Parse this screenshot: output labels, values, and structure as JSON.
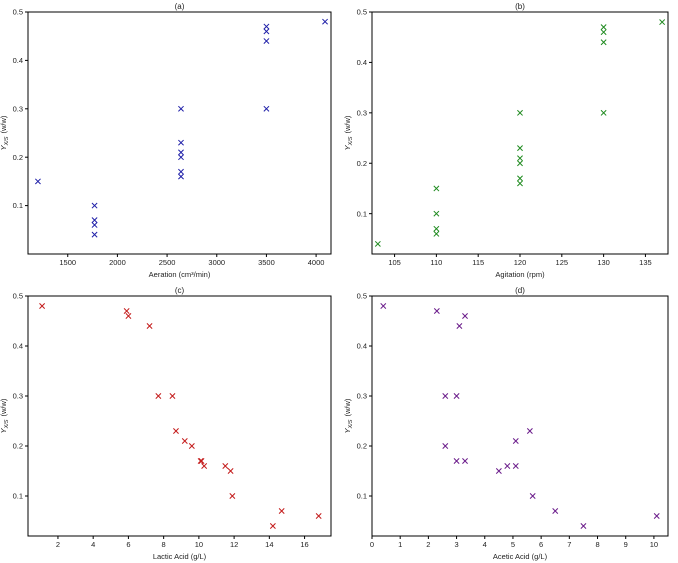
{
  "chart_data": [
    {
      "type": "scatter",
      "title": "(a)",
      "xlabel": "Aeration (cm³/min)",
      "ylabel_main": "Y",
      "ylabel_sub": "X/S",
      "ylabel_unit": "(w/w)",
      "xlim": [
        1100,
        4150
      ],
      "ylim": [
        0,
        0.5
      ],
      "xticks": [
        1500,
        2000,
        2500,
        3000,
        3500,
        4000
      ],
      "yticks": [
        0.1,
        0.2,
        0.3,
        0.4,
        0.5
      ],
      "color": "#1f1fa8",
      "points": [
        {
          "x": 1200,
          "y": 0.15
        },
        {
          "x": 1770,
          "y": 0.1
        },
        {
          "x": 1770,
          "y": 0.07
        },
        {
          "x": 1770,
          "y": 0.06
        },
        {
          "x": 1770,
          "y": 0.04
        },
        {
          "x": 2640,
          "y": 0.3
        },
        {
          "x": 2640,
          "y": 0.23
        },
        {
          "x": 2640,
          "y": 0.21
        },
        {
          "x": 2640,
          "y": 0.2
        },
        {
          "x": 2640,
          "y": 0.17
        },
        {
          "x": 2640,
          "y": 0.16
        },
        {
          "x": 3500,
          "y": 0.47
        },
        {
          "x": 3500,
          "y": 0.46
        },
        {
          "x": 3500,
          "y": 0.44
        },
        {
          "x": 3500,
          "y": 0.3
        },
        {
          "x": 4090,
          "y": 0.48
        }
      ]
    },
    {
      "type": "scatter",
      "title": "(b)",
      "xlabel": "Agitation (rpm)",
      "ylabel_main": "Y",
      "ylabel_sub": "X/S",
      "ylabel_unit": "(w/w)",
      "xlim": [
        102.3,
        137.7
      ],
      "ylim": [
        0.02,
        0.5
      ],
      "xticks": [
        105,
        110,
        115,
        120,
        125,
        130,
        135
      ],
      "yticks": [
        0.1,
        0.2,
        0.3,
        0.4,
        0.5
      ],
      "color": "#1e8a1e",
      "points": [
        {
          "x": 103,
          "y": 0.04
        },
        {
          "x": 110,
          "y": 0.15
        },
        {
          "x": 110,
          "y": 0.1
        },
        {
          "x": 110,
          "y": 0.07
        },
        {
          "x": 110,
          "y": 0.06
        },
        {
          "x": 120,
          "y": 0.3
        },
        {
          "x": 120,
          "y": 0.23
        },
        {
          "x": 120,
          "y": 0.21
        },
        {
          "x": 120,
          "y": 0.2
        },
        {
          "x": 120,
          "y": 0.17
        },
        {
          "x": 120,
          "y": 0.16
        },
        {
          "x": 130,
          "y": 0.47
        },
        {
          "x": 130,
          "y": 0.46
        },
        {
          "x": 130,
          "y": 0.44
        },
        {
          "x": 130,
          "y": 0.3
        },
        {
          "x": 137,
          "y": 0.48
        }
      ]
    },
    {
      "type": "scatter",
      "title": "(c)",
      "xlabel": "Lactic Acid (g/L)",
      "ylabel_main": "Y",
      "ylabel_sub": "X/S",
      "ylabel_unit": "(w/w)",
      "xlim": [
        0.3,
        17.5
      ],
      "ylim": [
        0.02,
        0.5
      ],
      "xticks": [
        2,
        4,
        6,
        8,
        10,
        12,
        14,
        16
      ],
      "yticks": [
        0.1,
        0.2,
        0.3,
        0.4,
        0.5
      ],
      "color": "#c41b1b",
      "points": [
        {
          "x": 1.1,
          "y": 0.48
        },
        {
          "x": 5.9,
          "y": 0.47
        },
        {
          "x": 6.0,
          "y": 0.46
        },
        {
          "x": 7.2,
          "y": 0.44
        },
        {
          "x": 7.7,
          "y": 0.3
        },
        {
          "x": 8.5,
          "y": 0.3
        },
        {
          "x": 8.7,
          "y": 0.23
        },
        {
          "x": 9.2,
          "y": 0.21
        },
        {
          "x": 9.6,
          "y": 0.2
        },
        {
          "x": 10.1,
          "y": 0.17
        },
        {
          "x": 10.3,
          "y": 0.16
        },
        {
          "x": 10.15,
          "y": 0.17
        },
        {
          "x": 11.5,
          "y": 0.16
        },
        {
          "x": 11.8,
          "y": 0.15
        },
        {
          "x": 11.9,
          "y": 0.1
        },
        {
          "x": 14.2,
          "y": 0.04
        },
        {
          "x": 14.7,
          "y": 0.07
        },
        {
          "x": 16.8,
          "y": 0.06
        }
      ]
    },
    {
      "type": "scatter",
      "title": "(d)",
      "xlabel": "Acetic Acid (g/L)",
      "ylabel_main": "Y",
      "ylabel_sub": "X/S",
      "ylabel_unit": "(w/w)",
      "xlim": [
        0,
        10.5
      ],
      "ylim": [
        0.02,
        0.5
      ],
      "xticks": [
        0,
        1,
        2,
        3,
        4,
        5,
        6,
        7,
        8,
        9,
        10
      ],
      "yticks": [
        0.1,
        0.2,
        0.3,
        0.4,
        0.5
      ],
      "color": "#6a1b8a",
      "points": [
        {
          "x": 0.4,
          "y": 0.48
        },
        {
          "x": 2.3,
          "y": 0.47
        },
        {
          "x": 3.1,
          "y": 0.44
        },
        {
          "x": 3.3,
          "y": 0.46
        },
        {
          "x": 2.6,
          "y": 0.3
        },
        {
          "x": 3.0,
          "y": 0.3
        },
        {
          "x": 2.6,
          "y": 0.2
        },
        {
          "x": 3.0,
          "y": 0.17
        },
        {
          "x": 3.3,
          "y": 0.17
        },
        {
          "x": 4.5,
          "y": 0.15
        },
        {
          "x": 4.8,
          "y": 0.16
        },
        {
          "x": 5.1,
          "y": 0.16
        },
        {
          "x": 5.1,
          "y": 0.21
        },
        {
          "x": 5.6,
          "y": 0.23
        },
        {
          "x": 5.7,
          "y": 0.1
        },
        {
          "x": 6.5,
          "y": 0.07
        },
        {
          "x": 7.5,
          "y": 0.04
        },
        {
          "x": 10.1,
          "y": 0.06
        }
      ]
    }
  ]
}
